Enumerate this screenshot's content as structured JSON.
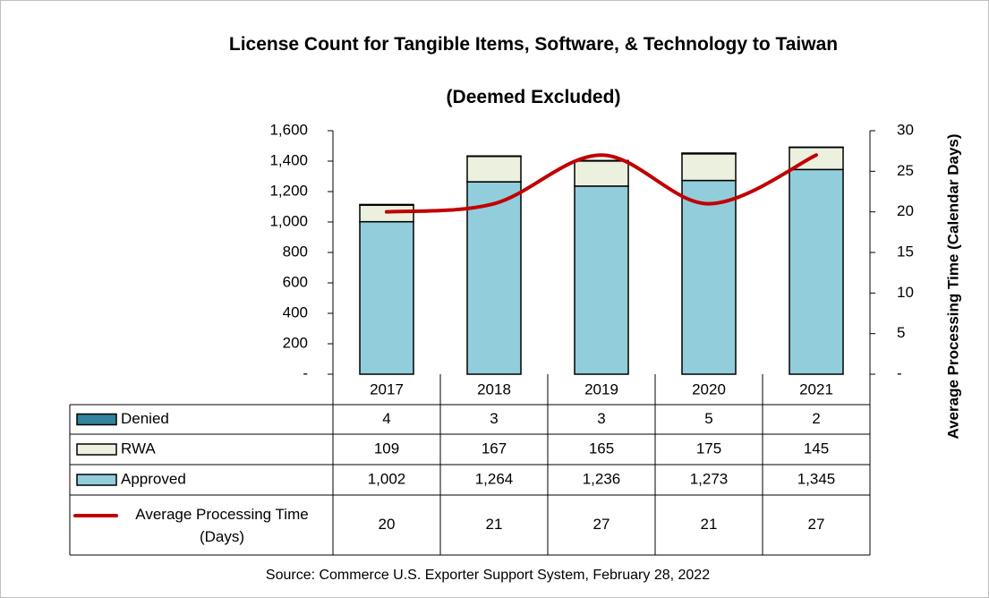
{
  "chart_data": {
    "type": "bar",
    "title": "License Count for Tangible Items, Software, & Technology to Taiwan",
    "subtitle": "(Deemed Excluded)",
    "y2_label": "Average Processing Time (Calendar Days)",
    "source": "Source: Commerce U.S. Exporter Support System, February 28, 2022",
    "categories": [
      "2017",
      "2018",
      "2019",
      "2020",
      "2021"
    ],
    "series": [
      {
        "name": "Denied",
        "color": "#31849b",
        "values": [
          4,
          3,
          3,
          5,
          2
        ]
      },
      {
        "name": "RWA",
        "color": "#ebf1de",
        "values": [
          109,
          167,
          165,
          175,
          145
        ]
      },
      {
        "name": "Approved",
        "color": "#92cddc",
        "values": [
          1002,
          1264,
          1236,
          1273,
          1345
        ],
        "value_labels": [
          "1,002",
          "1,264",
          "1,236",
          "1,273",
          "1,345"
        ]
      },
      {
        "name": "Average Processing Time (Days)",
        "color": "#c00000",
        "type": "line",
        "axis": "y2",
        "values": [
          20,
          21,
          27,
          21,
          27
        ]
      }
    ],
    "ylim": [
      0,
      1600
    ],
    "yticks": [
      {
        "value": 0,
        "label": "-"
      },
      200,
      400,
      600,
      800,
      {
        "value": 1000,
        "label": "1,000"
      },
      {
        "value": 1200,
        "label": "1,200"
      },
      {
        "value": 1400,
        "label": "1,400"
      },
      {
        "value": 1600,
        "label": "1,600"
      }
    ],
    "y2lim": [
      0,
      30
    ],
    "y2ticks": [
      {
        "value": 0,
        "label": "-"
      },
      5,
      10,
      15,
      20,
      25,
      30
    ],
    "grid": false
  }
}
